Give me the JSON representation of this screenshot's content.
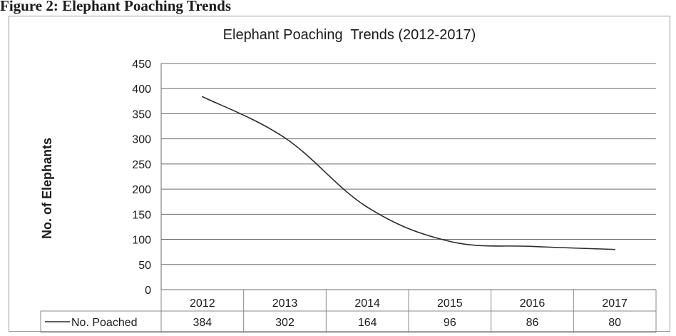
{
  "figure_caption": "Figure 2: Elephant Poaching Trends",
  "chart_data": {
    "type": "line",
    "title": "Elephant Poaching  Trends (2012-2017)",
    "ylabel": "No. of  Elephants",
    "xlabel": "",
    "categories": [
      "2012",
      "2013",
      "2014",
      "2015",
      "2016",
      "2017"
    ],
    "series": [
      {
        "name": "No. Poached",
        "values": [
          384,
          302,
          164,
          96,
          86,
          80
        ],
        "color": "#2a2a2a"
      }
    ],
    "ylim": [
      0,
      450
    ],
    "yticks": [
      0,
      50,
      100,
      150,
      200,
      250,
      300,
      350,
      400,
      450
    ],
    "grid": true,
    "legend": "data-table",
    "data_table": true
  }
}
